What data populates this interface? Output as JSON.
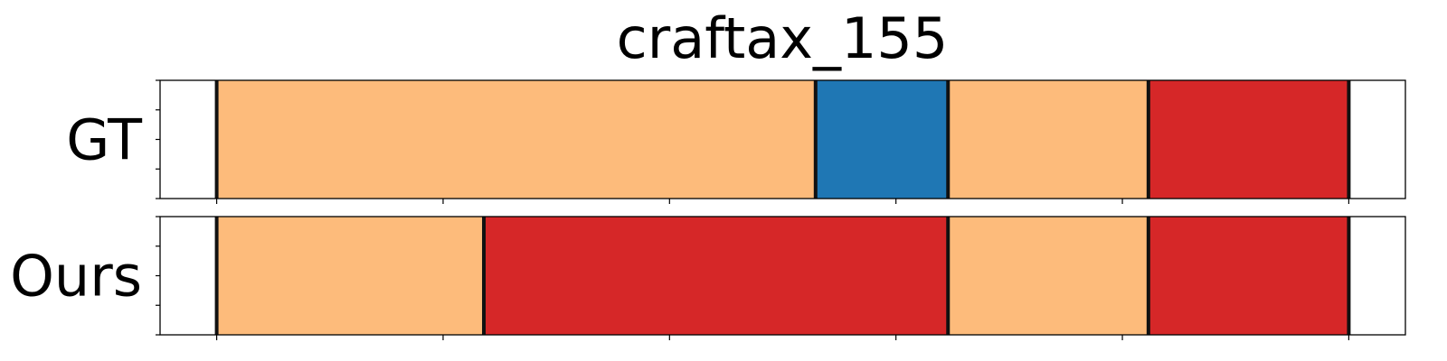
{
  "chart_data": {
    "type": "segmented-timeline",
    "title": "craftax_155",
    "colors": {
      "orange": "#fdbb7b",
      "blue": "#1f77b4",
      "red": "#d62728",
      "boundary": "#111111",
      "frame": "#000000"
    },
    "x_ticks": [
      0,
      0.2,
      0.4,
      0.6,
      0.8,
      1.0
    ],
    "xlim": [
      -0.05,
      1.05
    ],
    "y_minor_ticks": 5,
    "rows": [
      {
        "label": "GT",
        "segments": [
          {
            "start": 0.0,
            "end": 0.529,
            "color": "orange"
          },
          {
            "start": 0.529,
            "end": 0.646,
            "color": "blue"
          },
          {
            "start": 0.646,
            "end": 0.823,
            "color": "orange"
          },
          {
            "start": 0.823,
            "end": 1.0,
            "color": "red"
          }
        ]
      },
      {
        "label": "Ours",
        "segments": [
          {
            "start": 0.0,
            "end": 0.236,
            "color": "orange"
          },
          {
            "start": 0.236,
            "end": 0.646,
            "color": "red"
          },
          {
            "start": 0.646,
            "end": 0.823,
            "color": "orange"
          },
          {
            "start": 0.823,
            "end": 1.0,
            "color": "red"
          }
        ]
      }
    ]
  }
}
